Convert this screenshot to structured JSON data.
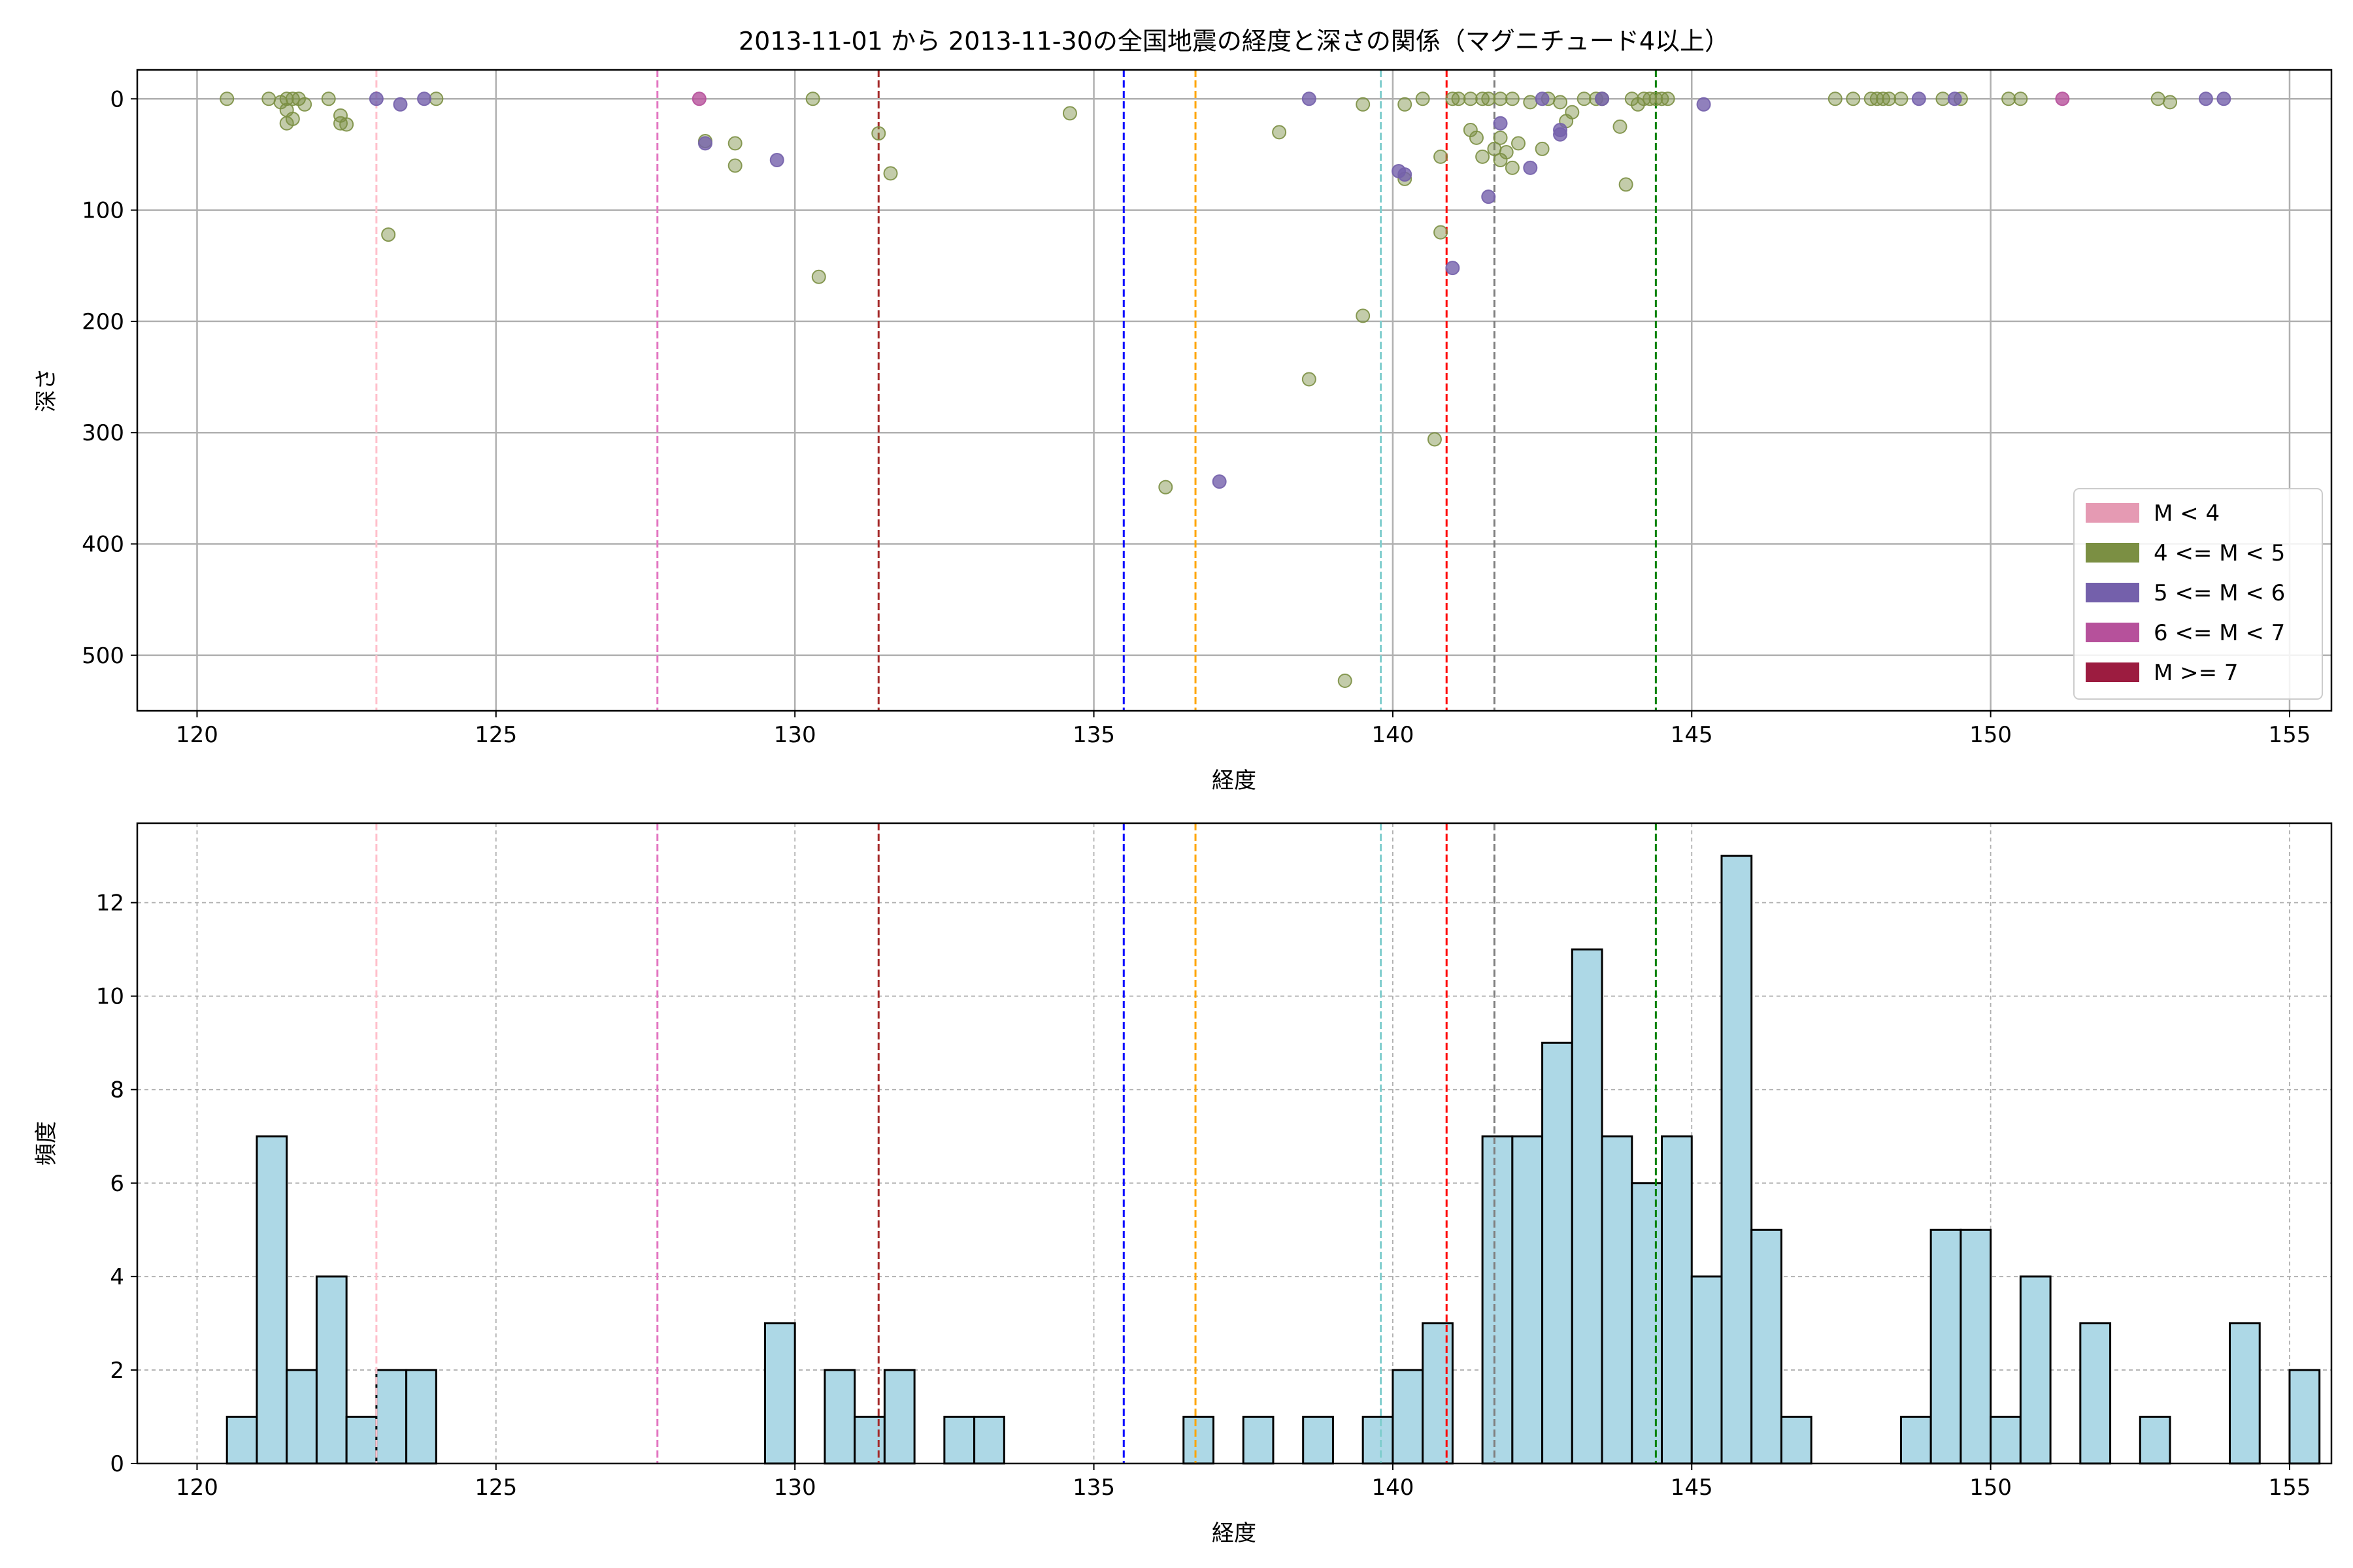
{
  "title": "2013-11-01 から 2013-11-30の全国地震の経度と深さの関係（マグニチュード4以上）",
  "colors": {
    "mag_lt4": "#e59ab3",
    "mag_4_5": "#7b8f43",
    "mag_5_6": "#7460ab",
    "mag_6_7": "#b6519b",
    "mag_ge7": "#9c1c40",
    "hist_fill": "#add8e6",
    "grid": "#b0b0b0"
  },
  "chart_data": [
    {
      "type": "scatter",
      "xlabel": "経度",
      "ylabel": "深さ",
      "xlim": [
        119,
        155.7
      ],
      "ylim": [
        550,
        -26
      ],
      "y_inverted": true,
      "xticks": [
        120,
        125,
        130,
        135,
        140,
        145,
        150,
        155
      ],
      "yticks": [
        0,
        100,
        200,
        300,
        400,
        500
      ],
      "grid": true,
      "legend_placement": "lower-right",
      "legend": [
        {
          "label": "M < 4",
          "color_key": "mag_lt4"
        },
        {
          "label": "4 <= M < 5",
          "color_key": "mag_4_5"
        },
        {
          "label": "5 <= M < 6",
          "color_key": "mag_5_6"
        },
        {
          "label": "6 <= M < 7",
          "color_key": "mag_6_7"
        },
        {
          "label": "M >= 7",
          "color_key": "mag_ge7"
        }
      ],
      "vlines": [
        {
          "x": 123.0,
          "color": "#ffc0cb"
        },
        {
          "x": 127.7,
          "color": "#e377c2"
        },
        {
          "x": 131.4,
          "color": "#a52a2a"
        },
        {
          "x": 135.5,
          "color": "#0000ff"
        },
        {
          "x": 136.7,
          "color": "#ffa500"
        },
        {
          "x": 139.8,
          "color": "#7fcdcd"
        },
        {
          "x": 140.9,
          "color": "#ff0000"
        },
        {
          "x": 141.7,
          "color": "#7f7f7f"
        },
        {
          "x": 144.4,
          "color": "#008000"
        }
      ],
      "series": [
        {
          "color_key": "mag_4_5",
          "points": [
            [
              120.5,
              0
            ],
            [
              121.2,
              0
            ],
            [
              121.4,
              3
            ],
            [
              121.5,
              0
            ],
            [
              121.5,
              10
            ],
            [
              121.6,
              0
            ],
            [
              121.5,
              22
            ],
            [
              121.6,
              18
            ],
            [
              121.7,
              0
            ],
            [
              121.8,
              5
            ],
            [
              122.2,
              0
            ],
            [
              122.4,
              15
            ],
            [
              122.4,
              22
            ],
            [
              122.5,
              23
            ],
            [
              123.2,
              122
            ],
            [
              124.0,
              0
            ],
            [
              128.5,
              38
            ],
            [
              129.0,
              40
            ],
            [
              129.0,
              60
            ],
            [
              130.3,
              0
            ],
            [
              130.4,
              160
            ],
            [
              131.4,
              31
            ],
            [
              131.6,
              67
            ],
            [
              134.6,
              13
            ],
            [
              136.2,
              349
            ],
            [
              138.1,
              30
            ],
            [
              138.6,
              252
            ],
            [
              139.2,
              523
            ],
            [
              139.5,
              195
            ],
            [
              139.5,
              5
            ],
            [
              140.2,
              5
            ],
            [
              140.2,
              72
            ],
            [
              140.5,
              0
            ],
            [
              140.7,
              306
            ],
            [
              140.8,
              52
            ],
            [
              140.8,
              120
            ],
            [
              141.0,
              0
            ],
            [
              141.1,
              0
            ],
            [
              141.3,
              0
            ],
            [
              141.3,
              28
            ],
            [
              141.4,
              35
            ],
            [
              141.5,
              0
            ],
            [
              141.5,
              52
            ],
            [
              141.6,
              0
            ],
            [
              141.7,
              45
            ],
            [
              141.8,
              0
            ],
            [
              141.8,
              35
            ],
            [
              141.8,
              55
            ],
            [
              141.9,
              48
            ],
            [
              142.0,
              0
            ],
            [
              142.0,
              62
            ],
            [
              142.1,
              40
            ],
            [
              142.3,
              3
            ],
            [
              142.5,
              45
            ],
            [
              142.6,
              0
            ],
            [
              142.8,
              3
            ],
            [
              142.9,
              20
            ],
            [
              143.0,
              12
            ],
            [
              143.2,
              0
            ],
            [
              143.4,
              0
            ],
            [
              143.5,
              0
            ],
            [
              143.8,
              25
            ],
            [
              143.9,
              77
            ],
            [
              144.0,
              0
            ],
            [
              144.1,
              5
            ],
            [
              144.2,
              0
            ],
            [
              144.3,
              0
            ],
            [
              144.4,
              0
            ],
            [
              144.5,
              0
            ],
            [
              144.6,
              0
            ],
            [
              147.4,
              0
            ],
            [
              147.7,
              0
            ],
            [
              148.0,
              0
            ],
            [
              148.1,
              0
            ],
            [
              148.2,
              0
            ],
            [
              148.3,
              0
            ],
            [
              148.5,
              0
            ],
            [
              149.2,
              0
            ],
            [
              149.5,
              0
            ],
            [
              150.3,
              0
            ],
            [
              150.5,
              0
            ],
            [
              152.8,
              0
            ],
            [
              153.0,
              3
            ]
          ]
        },
        {
          "color_key": "mag_5_6",
          "points": [
            [
              123.0,
              0
            ],
            [
              123.4,
              5
            ],
            [
              123.8,
              0
            ],
            [
              128.5,
              40
            ],
            [
              129.7,
              55
            ],
            [
              137.1,
              344
            ],
            [
              138.6,
              0
            ],
            [
              140.1,
              65
            ],
            [
              140.2,
              68
            ],
            [
              141.0,
              152
            ],
            [
              141.6,
              88
            ],
            [
              141.8,
              22
            ],
            [
              142.3,
              62
            ],
            [
              142.5,
              0
            ],
            [
              142.8,
              28
            ],
            [
              142.8,
              32
            ],
            [
              143.5,
              0
            ],
            [
              145.2,
              5
            ],
            [
              148.8,
              0
            ],
            [
              149.4,
              0
            ],
            [
              153.6,
              0
            ],
            [
              153.9,
              0
            ]
          ]
        },
        {
          "color_key": "mag_6_7",
          "points": [
            [
              128.4,
              0
            ],
            [
              151.2,
              0
            ]
          ]
        }
      ]
    },
    {
      "type": "histogram",
      "xlabel": "経度",
      "ylabel": "頻度",
      "xlim": [
        119,
        155.7
      ],
      "ylim": [
        0,
        13.7
      ],
      "xticks": [
        120,
        125,
        130,
        135,
        140,
        145,
        150,
        155
      ],
      "yticks": [
        0,
        2,
        4,
        6,
        8,
        10,
        12
      ],
      "grid": true,
      "bin_start": 120.5,
      "bin_width": 0.5,
      "counts": [
        1,
        7,
        2,
        4,
        1,
        2,
        2,
        0,
        0,
        0,
        0,
        0,
        0,
        0,
        0,
        0,
        0,
        0,
        3,
        0,
        2,
        1,
        2,
        0,
        1,
        1,
        0,
        0,
        0,
        0,
        0,
        0,
        1,
        0,
        1,
        0,
        1,
        0,
        1,
        2,
        3,
        0,
        7,
        7,
        9,
        11,
        7,
        6,
        7,
        4,
        13,
        5,
        1,
        0,
        0,
        0,
        1,
        5,
        5,
        1,
        4,
        0,
        3,
        0,
        1,
        0,
        0,
        3,
        0,
        2
      ],
      "vlines": [
        {
          "x": 123.0,
          "color": "#ffc0cb"
        },
        {
          "x": 127.7,
          "color": "#e377c2"
        },
        {
          "x": 131.4,
          "color": "#a52a2a"
        },
        {
          "x": 135.5,
          "color": "#0000ff"
        },
        {
          "x": 136.7,
          "color": "#ffa500"
        },
        {
          "x": 139.8,
          "color": "#7fcdcd"
        },
        {
          "x": 140.9,
          "color": "#ff0000"
        },
        {
          "x": 141.7,
          "color": "#7f7f7f"
        },
        {
          "x": 144.4,
          "color": "#008000"
        }
      ]
    }
  ]
}
